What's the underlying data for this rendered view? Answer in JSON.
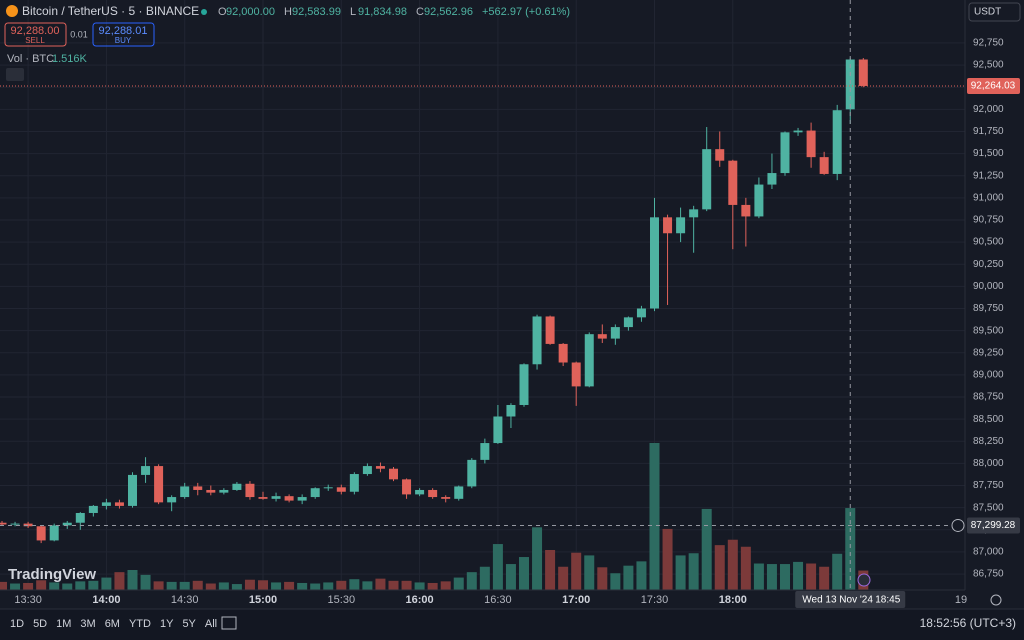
{
  "header": {
    "symbol": "Bitcoin / TetherUS · 5 · BINANCE",
    "ohlc": [
      {
        "key": "O",
        "value": "92,000.00"
      },
      {
        "key": "H",
        "value": "92,583.99"
      },
      {
        "key": "L",
        "value": "91,834.98"
      },
      {
        "key": "C",
        "value": "92,562.96"
      }
    ],
    "change": "+562.97 (+0.61%)"
  },
  "trade": {
    "sell_price": "92,288.00",
    "sell": "SELL",
    "spread": "0.01",
    "buy_price": "92,288.01",
    "buy": "BUY"
  },
  "volume_legend": {
    "label": "Vol · BTC",
    "value": "1.516K"
  },
  "currency": "USDT",
  "logo": "TradingView",
  "crosshair": {
    "date": "Wed 13 Nov '24",
    "time": "18:45"
  },
  "toolbar": {
    "ranges": [
      "1D",
      "5D",
      "1M",
      "3M",
      "6M",
      "YTD",
      "1Y",
      "5Y",
      "All"
    ],
    "clock": "18:52:56 (UTC+3)"
  },
  "chart_data": {
    "type": "candlestick",
    "x": [
      null,
      null,
      "13:30",
      null,
      null,
      null,
      null,
      null,
      "14:00",
      null,
      null,
      null,
      null,
      null,
      "14:30",
      null,
      null,
      null,
      null,
      null,
      "15:00",
      null,
      null,
      null,
      null,
      null,
      "15:30",
      null,
      null,
      null,
      null,
      null,
      "16:00",
      null,
      null,
      null,
      null,
      null,
      "16:30",
      null,
      null,
      null,
      null,
      null,
      "17:00",
      null,
      null,
      null,
      null,
      null,
      "17:30",
      null,
      null,
      null,
      null,
      null,
      "18:00",
      null,
      null,
      null,
      null,
      null,
      null,
      null,
      null,
      null,
      null
    ],
    "x_axis_cut_label": "19",
    "open": [
      87330,
      87310,
      87320,
      87290,
      87130,
      87300,
      87330,
      87440,
      87520,
      87560,
      87520,
      87870,
      87970,
      87560,
      87620,
      87740,
      87700,
      87670,
      87700,
      87770,
      87620,
      87600,
      87630,
      87580,
      87620,
      87720,
      87730,
      87680,
      87880,
      87970,
      87940,
      87820,
      87650,
      87700,
      87620,
      87600,
      87740,
      88040,
      88230,
      88530,
      88660,
      89120,
      89660,
      89350,
      89140,
      88870,
      89460,
      89410,
      89540,
      89650,
      89750,
      90780,
      90600,
      90780,
      90870,
      91550,
      91420,
      90920,
      90790,
      91150,
      91280,
      91740,
      91760,
      91460,
      91270,
      92000,
      92562.96
    ],
    "high": [
      87350,
      87340,
      87340,
      87300,
      87320,
      87350,
      87450,
      87530,
      87600,
      87590,
      87900,
      88070,
      87990,
      87640,
      87780,
      87780,
      87750,
      87720,
      87790,
      87800,
      87680,
      87670,
      87650,
      87650,
      87730,
      87760,
      87760,
      87900,
      88000,
      88010,
      87960,
      87830,
      87720,
      87720,
      87640,
      87750,
      88060,
      88280,
      88660,
      88680,
      89130,
      89680,
      89670,
      89360,
      89150,
      89480,
      89570,
      89570,
      89660,
      89780,
      91000,
      90810,
      90890,
      90910,
      91800,
      91750,
      91430,
      91000,
      91230,
      91500,
      91750,
      91790,
      91850,
      91520,
      92050,
      92583.99,
      92580
    ],
    "low": [
      87300,
      87290,
      87270,
      87100,
      87120,
      87260,
      87250,
      87400,
      87480,
      87490,
      87500,
      87780,
      87540,
      87460,
      87600,
      87640,
      87640,
      87650,
      87690,
      87590,
      87590,
      87570,
      87560,
      87540,
      87600,
      87690,
      87650,
      87650,
      87860,
      87900,
      87800,
      87600,
      87630,
      87600,
      87560,
      87580,
      87720,
      88000,
      88220,
      88400,
      88640,
      89060,
      89340,
      89100,
      88650,
      88860,
      89360,
      89340,
      89500,
      89600,
      89720,
      89790,
      90500,
      90380,
      90850,
      91350,
      90420,
      90450,
      90770,
      91100,
      91250,
      91700,
      91340,
      91260,
      91200,
      91834.98,
      92250
    ],
    "close": [
      87310,
      87320,
      87290,
      87130,
      87300,
      87330,
      87440,
      87520,
      87560,
      87520,
      87870,
      87970,
      87560,
      87620,
      87740,
      87700,
      87670,
      87700,
      87770,
      87620,
      87600,
      87630,
      87580,
      87620,
      87720,
      87730,
      87680,
      87880,
      87970,
      87940,
      87820,
      87650,
      87700,
      87620,
      87600,
      87740,
      88040,
      88230,
      88530,
      88660,
      89120,
      89660,
      89350,
      89140,
      88870,
      89460,
      89410,
      89540,
      89650,
      89750,
      90780,
      90600,
      90780,
      90870,
      91550,
      91420,
      90920,
      90790,
      91150,
      91280,
      91740,
      91760,
      91460,
      91270,
      91990,
      92562.96,
      92264.03
    ],
    "volume": [
      150,
      120,
      130,
      180,
      140,
      120,
      160,
      170,
      230,
      330,
      370,
      280,
      160,
      150,
      150,
      170,
      120,
      140,
      110,
      190,
      180,
      140,
      150,
      130,
      120,
      140,
      170,
      200,
      160,
      210,
      170,
      170,
      140,
      130,
      160,
      230,
      330,
      430,
      850,
      480,
      610,
      1160,
      740,
      430,
      690,
      640,
      420,
      310,
      450,
      530,
      2720,
      1130,
      640,
      680,
      1500,
      830,
      930,
      800,
      490,
      480,
      480,
      520,
      490,
      430,
      670,
      1516,
      360
    ],
    "up_color": "#4fb3a2",
    "down_color": "#e0625a",
    "up_volume_color": "#2d6b61",
    "down_volume_color": "#7c3a3a",
    "ylim": [
      86570,
      93235
    ],
    "yticks": [
      {
        "value": 86750,
        "label": "86,750"
      },
      {
        "value": 87000,
        "label": "87,000"
      },
      {
        "value": 87250,
        "label": "87,250"
      },
      {
        "value": 87500,
        "label": "87,500"
      },
      {
        "value": 87750,
        "label": "87,750"
      },
      {
        "value": 88000,
        "label": "88,000"
      },
      {
        "value": 88250,
        "label": "88,250"
      },
      {
        "value": 88500,
        "label": "88,500"
      },
      {
        "value": 88750,
        "label": "88,750"
      },
      {
        "value": 89000,
        "label": "89,000"
      },
      {
        "value": 89250,
        "label": "89,250"
      },
      {
        "value": 89500,
        "label": "89,500"
      },
      {
        "value": 89750,
        "label": "89,750"
      },
      {
        "value": 90000,
        "label": "90,000"
      },
      {
        "value": 90250,
        "label": "90,250"
      },
      {
        "value": 90500,
        "label": "90,500"
      },
      {
        "value": 90750,
        "label": "90,750"
      },
      {
        "value": 91000,
        "label": "91,000"
      },
      {
        "value": 91250,
        "label": "91,250"
      },
      {
        "value": 91500,
        "label": "91,500"
      },
      {
        "value": 91750,
        "label": "91,750"
      },
      {
        "value": 92000,
        "label": "92,000"
      },
      {
        "value": 92250,
        "label": "92,250"
      },
      {
        "value": 92500,
        "label": "92,500"
      },
      {
        "value": 92750,
        "label": "92,750"
      }
    ],
    "last_price": {
      "value": 92264.03,
      "label": "92,264.03"
    },
    "crosshair_price": {
      "value": 87299.28,
      "label": "87,299.28"
    },
    "grid": true
  }
}
